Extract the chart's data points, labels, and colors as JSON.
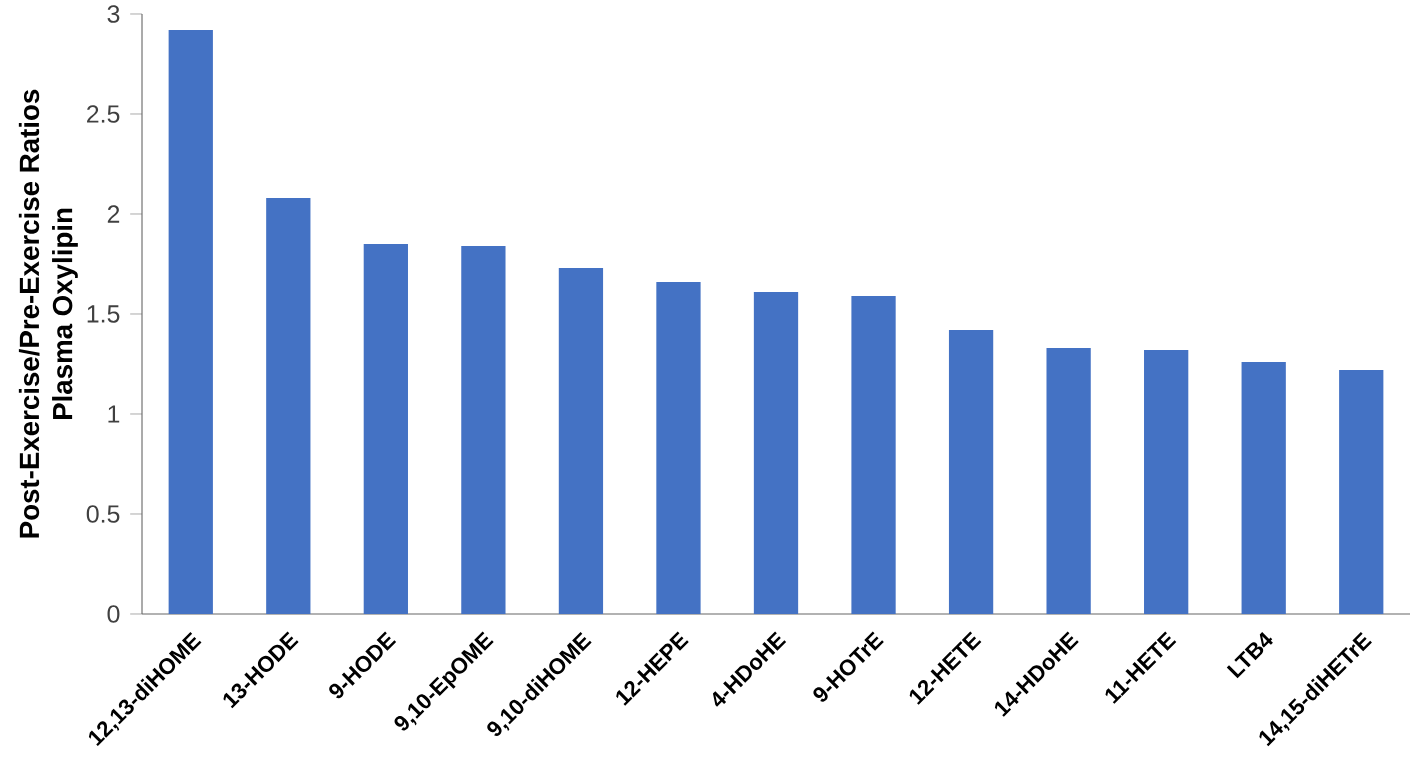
{
  "chart_data": {
    "type": "bar",
    "ylabel": "Post-Exercise/Pre-Exercise Ratios\nPlasma Oxylipin",
    "categories": [
      "12,13-diHOME",
      "13-HODE",
      "9-HODE",
      "9,10-EpOME",
      "9,10-diHOME",
      "12-HEPE",
      "4-HDoHE",
      "9-HOTrE",
      "12-HETE",
      "14-HDoHE",
      "11-HETE",
      "LTB4",
      "14,15-diHETrE"
    ],
    "values": [
      2.92,
      2.08,
      1.85,
      1.84,
      1.73,
      1.66,
      1.61,
      1.59,
      1.42,
      1.33,
      1.32,
      1.26,
      1.22
    ],
    "color": "#4472c4",
    "ylim": [
      0,
      3
    ],
    "yticks": [
      0,
      0.5,
      1,
      1.5,
      2,
      2.5,
      3
    ]
  }
}
